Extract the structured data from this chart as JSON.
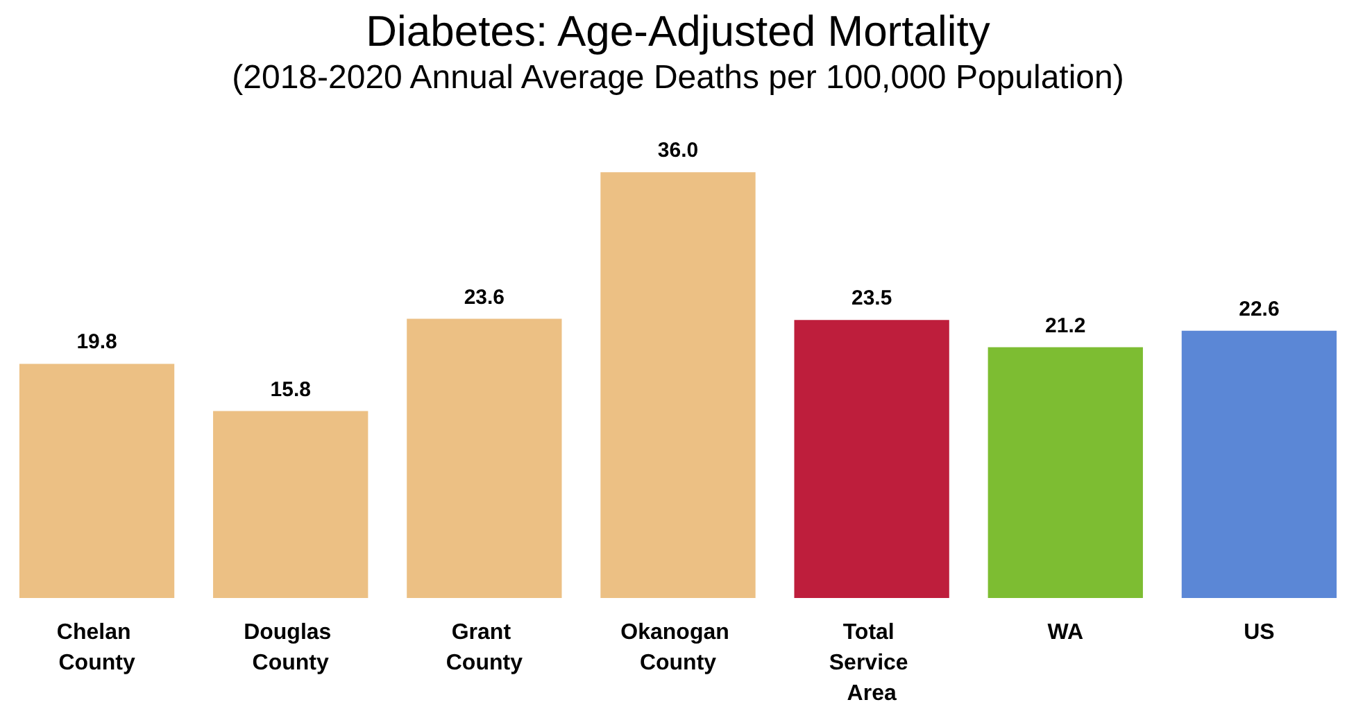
{
  "chart_data": {
    "type": "bar",
    "title": "Diabetes: Age-Adjusted Mortality",
    "subtitle": "(2018-2020 Annual Average Deaths per 100,000 Population)",
    "categories": [
      "Chelan County",
      "Douglas County",
      "Grant County",
      "Okanogan County",
      "Total Service Area",
      "WA",
      "US"
    ],
    "values": [
      19.8,
      15.8,
      23.6,
      36.0,
      23.5,
      21.2,
      22.6
    ],
    "value_labels": [
      "19.8",
      "15.8",
      "23.6",
      "36.0",
      "23.5",
      "21.2",
      "22.6"
    ],
    "colors": [
      "#ecc084",
      "#ecc084",
      "#ecc084",
      "#ecc084",
      "#be1e3c",
      "#7dbd32",
      "#5b87d6"
    ],
    "tick_labels": "x"
  }
}
